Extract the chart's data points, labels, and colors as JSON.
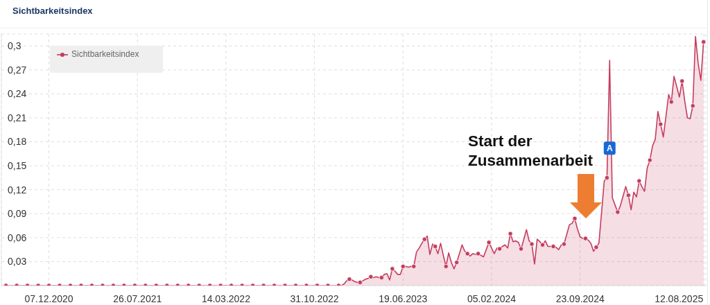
{
  "chart_data": {
    "type": "area",
    "title": "Sichtbarkeitsindex",
    "series": [
      {
        "name": "Sichtbarkeitsindex",
        "color": "#c43d5e",
        "x": [
          "2020-08-17",
          "2020-09-14",
          "2020-10-12",
          "2020-11-09",
          "2020-12-07",
          "2021-01-04",
          "2021-02-01",
          "2021-03-01",
          "2021-03-29",
          "2021-04-26",
          "2021-05-24",
          "2021-06-21",
          "2021-07-19",
          "2021-08-16",
          "2021-09-13",
          "2021-10-11",
          "2021-11-08",
          "2021-12-06",
          "2022-01-03",
          "2022-01-31",
          "2022-02-28",
          "2022-03-28",
          "2022-04-25",
          "2022-05-23",
          "2022-06-20",
          "2022-07-18",
          "2022-08-15",
          "2022-09-12",
          "2022-10-10",
          "2022-11-07",
          "2022-12-05",
          "2023-01-02",
          "2023-01-09",
          "2023-01-16",
          "2023-01-23",
          "2023-01-30",
          "2023-02-06",
          "2023-02-13",
          "2023-02-20",
          "2023-02-27",
          "2023-03-06",
          "2023-03-13",
          "2023-03-20",
          "2023-03-27",
          "2023-04-03",
          "2023-04-10",
          "2023-04-17",
          "2023-04-24",
          "2023-05-01",
          "2023-05-08",
          "2023-05-15",
          "2023-05-22",
          "2023-05-29",
          "2023-06-05",
          "2023-06-12",
          "2023-06-19",
          "2023-06-26",
          "2023-07-03",
          "2023-07-10",
          "2023-07-17",
          "2023-07-24",
          "2023-07-31",
          "2023-08-07",
          "2023-08-14",
          "2023-08-21",
          "2023-08-28",
          "2023-09-04",
          "2023-09-11",
          "2023-09-18",
          "2023-09-25",
          "2023-10-02",
          "2023-10-09",
          "2023-10-16",
          "2023-10-23",
          "2023-10-30",
          "2023-11-06",
          "2023-11-13",
          "2023-11-20",
          "2023-11-27",
          "2023-12-04",
          "2023-12-11",
          "2023-12-18",
          "2023-12-25",
          "2024-01-01",
          "2024-01-08",
          "2024-01-15",
          "2024-01-22",
          "2024-01-29",
          "2024-02-05",
          "2024-02-12",
          "2024-02-19",
          "2024-02-26",
          "2024-03-04",
          "2024-03-11",
          "2024-03-18",
          "2024-03-25",
          "2024-04-01",
          "2024-04-08",
          "2024-04-15",
          "2024-04-22",
          "2024-04-29",
          "2024-05-06",
          "2024-05-13",
          "2024-05-20",
          "2024-05-27",
          "2024-06-03",
          "2024-06-10",
          "2024-06-17",
          "2024-06-24",
          "2024-07-01",
          "2024-07-08",
          "2024-07-15",
          "2024-07-22",
          "2024-07-29",
          "2024-08-05",
          "2024-08-12",
          "2024-08-19",
          "2024-08-26",
          "2024-09-02",
          "2024-09-09",
          "2024-09-16",
          "2024-09-23",
          "2024-09-30",
          "2024-10-07",
          "2024-10-14",
          "2024-10-21",
          "2024-10-28",
          "2024-11-04",
          "2024-11-11",
          "2024-11-18",
          "2024-11-25",
          "2024-12-02",
          "2024-12-09",
          "2024-12-16",
          "2024-12-23",
          "2024-12-30",
          "2025-01-06",
          "2025-01-13",
          "2025-01-20",
          "2025-01-27",
          "2025-02-03",
          "2025-02-10",
          "2025-02-17",
          "2025-02-24",
          "2025-03-03",
          "2025-03-10",
          "2025-03-17",
          "2025-03-24",
          "2025-03-31",
          "2025-04-07",
          "2025-04-14",
          "2025-04-21",
          "2025-04-28",
          "2025-05-05",
          "2025-05-12",
          "2025-05-19",
          "2025-05-26",
          "2025-06-02",
          "2025-06-09",
          "2025-06-16",
          "2025-06-23",
          "2025-06-30",
          "2025-07-07",
          "2025-07-14",
          "2025-07-21",
          "2025-07-28",
          "2025-08-04",
          "2025-08-11"
        ],
        "values": [
          0,
          0,
          0,
          0,
          0,
          0,
          0,
          0,
          0,
          0,
          0,
          0,
          0,
          0,
          0,
          0,
          0,
          0,
          0,
          0,
          0,
          0,
          0,
          0,
          0,
          0,
          0,
          0,
          0,
          0,
          0,
          0,
          0,
          0.002,
          0.006,
          0.008,
          0.007,
          0.005,
          0.004,
          0.004,
          0.006,
          0.008,
          0.009,
          0.011,
          0.01,
          0.011,
          0.01,
          0.01,
          0.014,
          0.015,
          0.007,
          0.021,
          0.018,
          0.014,
          0.014,
          0.024,
          0.024,
          0.023,
          0.024,
          0.024,
          0.042,
          0.047,
          0.053,
          0.058,
          0.062,
          0.039,
          0.052,
          0.049,
          0.04,
          0.053,
          0.038,
          0.024,
          0.041,
          0.029,
          0.021,
          0.029,
          0.04,
          0.051,
          0.043,
          0.04,
          0.037,
          0.04,
          0.039,
          0.04,
          0.038,
          0.036,
          0.045,
          0.054,
          0.047,
          0.04,
          0.047,
          0.046,
          0.049,
          0.051,
          0.047,
          0.065,
          0.055,
          0.056,
          0.054,
          0.046,
          0.058,
          0.07,
          0.056,
          0.052,
          0.027,
          0.058,
          0.055,
          0.051,
          0.056,
          0.049,
          0.049,
          0.049,
          0.048,
          0.045,
          0.051,
          0.052,
          0.064,
          0.076,
          0.078,
          0.084,
          0.071,
          0.061,
          0.059,
          0.059,
          0.057,
          0.053,
          0.043,
          0.048,
          0.053,
          0.092,
          0.131,
          0.135,
          0.282,
          0.11,
          0.101,
          0.092,
          0.1,
          0.112,
          0.124,
          0.113,
          0.095,
          0.117,
          0.111,
          0.131,
          0.124,
          0.118,
          0.147,
          0.157,
          0.175,
          0.183,
          0.218,
          0.202,
          0.186,
          0.212,
          0.239,
          0.23,
          0.262,
          0.249,
          0.236,
          0.256,
          0.231,
          0.21,
          0.209,
          0.225,
          0.312,
          0.278,
          0.257,
          0.305
        ]
      },
      {
        "type": "scatter",
        "color": "#c43d5e",
        "marker": "circle",
        "x": [
          "2020-08-17",
          "2020-09-14",
          "2020-10-12",
          "2020-11-09",
          "2020-12-07",
          "2021-01-04",
          "2021-02-01",
          "2021-03-01",
          "2021-03-29",
          "2021-04-26",
          "2021-05-24",
          "2021-06-21",
          "2021-07-19",
          "2021-08-16",
          "2021-09-13",
          "2021-10-11",
          "2021-11-08",
          "2021-12-06",
          "2022-01-03",
          "2022-01-31",
          "2022-02-28",
          "2022-03-28",
          "2022-04-25",
          "2022-05-23",
          "2022-06-20",
          "2022-07-18",
          "2022-08-15",
          "2022-09-12",
          "2022-10-10",
          "2022-11-07",
          "2022-12-05",
          "2023-01-02",
          "2023-01-30",
          "2023-02-27",
          "2023-03-27",
          "2023-04-24",
          "2023-05-22",
          "2023-06-19",
          "2023-07-17",
          "2023-08-14",
          "2023-09-11",
          "2023-10-09",
          "2023-11-06",
          "2023-12-04",
          "2024-01-01",
          "2024-01-29",
          "2024-02-26",
          "2024-03-25",
          "2024-04-22",
          "2024-05-20",
          "2024-06-17",
          "2024-07-15",
          "2024-08-12",
          "2024-09-09",
          "2024-10-07",
          "2024-11-04",
          "2024-12-02",
          "2024-12-30",
          "2025-01-27",
          "2025-02-24",
          "2025-03-24",
          "2025-04-21",
          "2025-05-19",
          "2025-06-16",
          "2025-07-14",
          "2025-08-11"
        ],
        "values": [
          0,
          0,
          0,
          0,
          0,
          0,
          0,
          0,
          0,
          0,
          0,
          0,
          0,
          0,
          0,
          0,
          0,
          0,
          0,
          0,
          0,
          0,
          0,
          0,
          0,
          0,
          0,
          0,
          0,
          0,
          0,
          0,
          0.008,
          0.004,
          0.011,
          0.01,
          0.021,
          0.024,
          0.024,
          0.058,
          0.049,
          0.024,
          0.029,
          0.04,
          0.04,
          0.054,
          0.046,
          0.065,
          0.046,
          0.052,
          0.051,
          0.049,
          0.052,
          0.084,
          0.059,
          0.048,
          0.135,
          0.092,
          0.113,
          0.131,
          0.157,
          0.202,
          0.23,
          0.256,
          0.225,
          0.305
        ]
      }
    ],
    "xlim": [
      "2020-08-05",
      "2025-08-17"
    ],
    "xticks": [
      {
        "value": "2020-12-07",
        "label": "07.12.2020"
      },
      {
        "value": "2021-07-26",
        "label": "26.07.2021"
      },
      {
        "value": "2022-03-14",
        "label": "14.03.2022"
      },
      {
        "value": "2022-10-31",
        "label": "31.10.2022"
      },
      {
        "value": "2023-06-19",
        "label": "19.06.2023"
      },
      {
        "value": "2024-02-05",
        "label": "05.02.2024"
      },
      {
        "value": "2024-09-23",
        "label": "23.09.2024"
      },
      {
        "value": "2025-08-12",
        "label": "12.08.2025"
      }
    ],
    "ylim": [
      0,
      0.315
    ],
    "yticks": [
      {
        "value": 0.03,
        "label": "0,03"
      },
      {
        "value": 0.06,
        "label": "0,06"
      },
      {
        "value": 0.09,
        "label": "0,09"
      },
      {
        "value": 0.12,
        "label": "0,12"
      },
      {
        "value": 0.15,
        "label": "0,15"
      },
      {
        "value": 0.18,
        "label": "0,18"
      },
      {
        "value": 0.21,
        "label": "0,21"
      },
      {
        "value": 0.24,
        "label": "0,24"
      },
      {
        "value": 0.27,
        "label": "0,27"
      },
      {
        "value": 0.3,
        "label": "0,3"
      }
    ],
    "grid": true,
    "legend": "top left",
    "annotations": [
      "Start der Zusammenarbeit",
      {
        "text": "A",
        "x": "2024-12-09",
        "y": 0.172
      }
    ]
  }
}
